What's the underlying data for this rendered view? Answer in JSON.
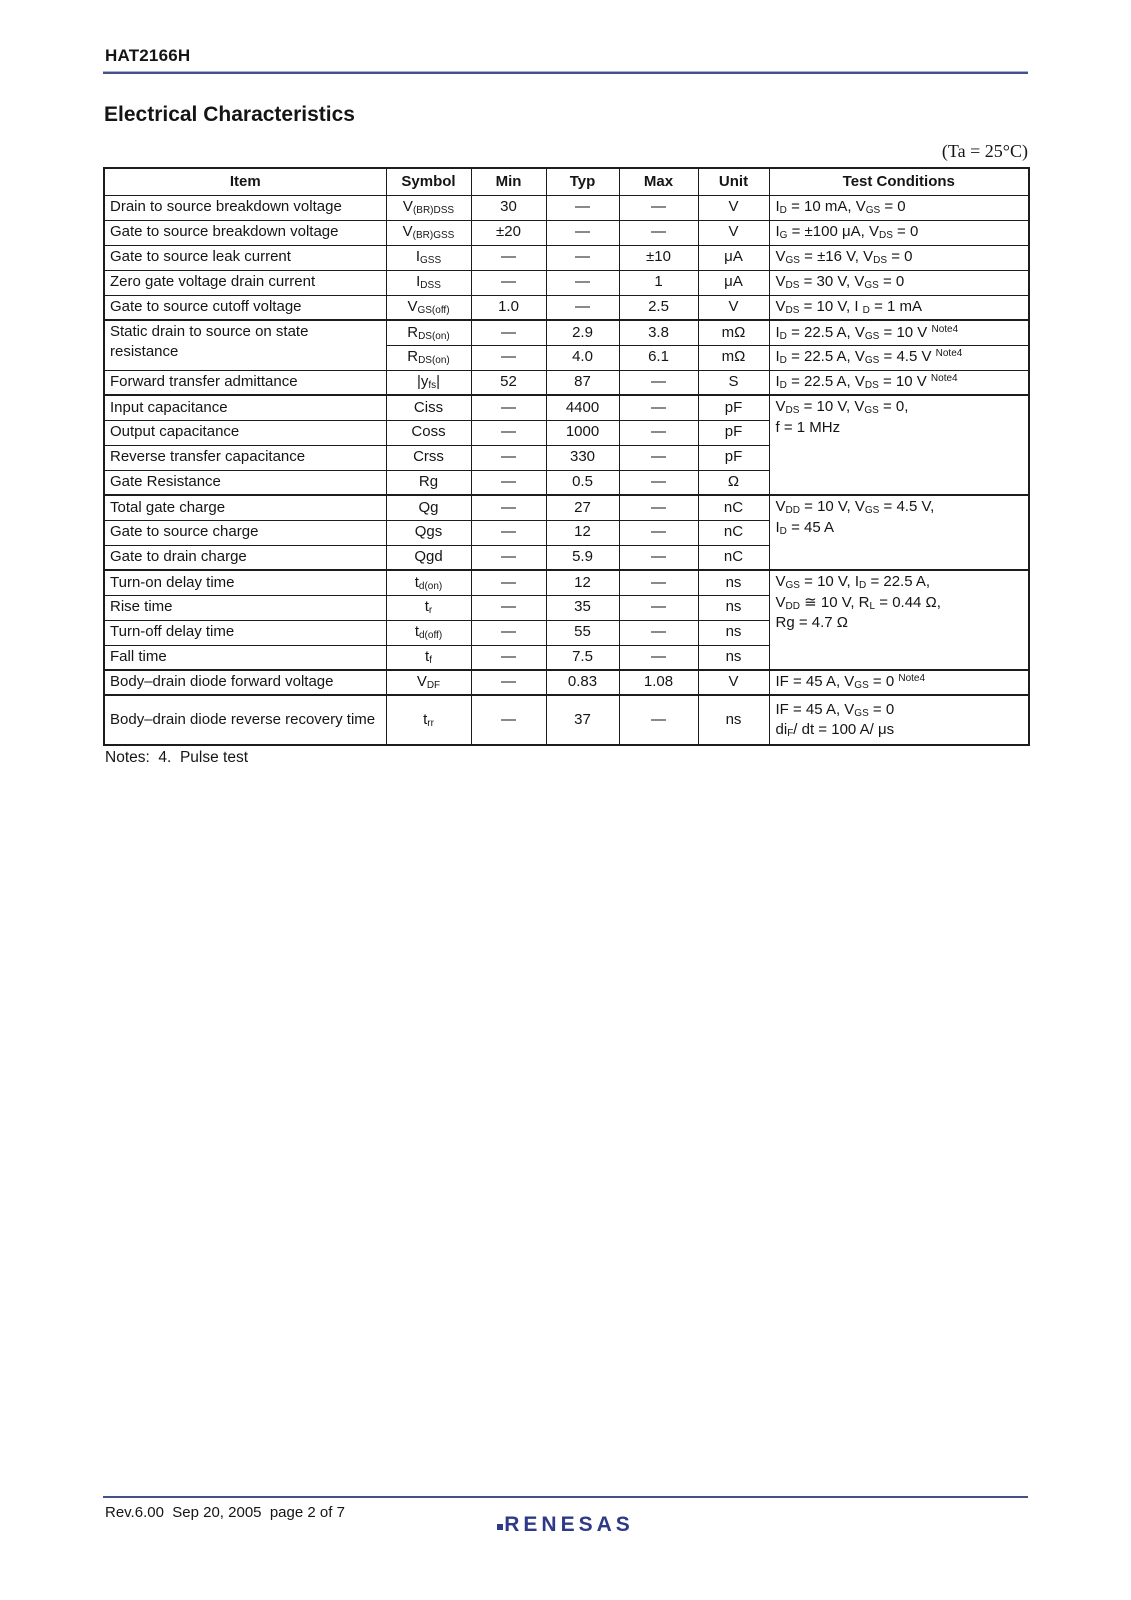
{
  "header": {
    "part_number": "HAT2166H"
  },
  "main": {
    "title": "Electrical Characteristics",
    "condition_note": "(Ta = 25°C)",
    "notes": "Notes:  4.  Pulse test"
  },
  "table": {
    "columns": [
      "Item",
      "Symbol",
      "Min",
      "Typ",
      "Max",
      "Unit",
      "Test Conditions"
    ],
    "rows": [
      {
        "item": "Drain to source breakdown voltage",
        "symbol": [
          {
            "t": "V"
          },
          {
            "t": "(BR)DSS",
            "s": "sub"
          }
        ],
        "min": "30",
        "typ": "—",
        "max": "—",
        "unit": "V",
        "cond": [
          [
            {
              "t": "I"
            },
            {
              "t": "D",
              "s": "sub"
            },
            {
              "t": " = 10 mA, V"
            },
            {
              "t": "GS",
              "s": "sub"
            },
            {
              "t": " = 0"
            }
          ]
        ]
      },
      {
        "item": "Gate to source breakdown voltage",
        "symbol": [
          {
            "t": "V"
          },
          {
            "t": "(BR)GSS",
            "s": "sub"
          }
        ],
        "min": "±20",
        "typ": "—",
        "max": "—",
        "unit": "V",
        "cond": [
          [
            {
              "t": "I"
            },
            {
              "t": "G",
              "s": "sub"
            },
            {
              "t": " = ±100 μA, V"
            },
            {
              "t": "DS",
              "s": "sub"
            },
            {
              "t": " = 0"
            }
          ]
        ]
      },
      {
        "item": "Gate to source leak current",
        "symbol": [
          {
            "t": "I"
          },
          {
            "t": "GSS",
            "s": "sub"
          }
        ],
        "min": "—",
        "typ": "—",
        "max": "±10",
        "unit": "μA",
        "cond": [
          [
            {
              "t": "V"
            },
            {
              "t": "GS",
              "s": "sub"
            },
            {
              "t": " = ±16 V, V"
            },
            {
              "t": "DS",
              "s": "sub"
            },
            {
              "t": " = 0"
            }
          ]
        ]
      },
      {
        "item": "Zero gate voltage drain current",
        "symbol": [
          {
            "t": "I"
          },
          {
            "t": "DSS",
            "s": "sub"
          }
        ],
        "min": "—",
        "typ": "—",
        "max": "1",
        "unit": "μA",
        "cond": [
          [
            {
              "t": "V"
            },
            {
              "t": "DS",
              "s": "sub"
            },
            {
              "t": " = 30 V, V"
            },
            {
              "t": "GS",
              "s": "sub"
            },
            {
              "t": " = 0"
            }
          ]
        ]
      },
      {
        "item": "Gate to source cutoff voltage",
        "symbol": [
          {
            "t": "V"
          },
          {
            "t": "GS(off)",
            "s": "sub"
          }
        ],
        "min": "1.0",
        "typ": "—",
        "max": "2.5",
        "unit": "V",
        "cond": [
          [
            {
              "t": "V"
            },
            {
              "t": "DS",
              "s": "sub"
            },
            {
              "t": " = 10 V,  I "
            },
            {
              "t": "D",
              "s": "sub"
            },
            {
              "t": " = 1 mA"
            }
          ]
        ]
      },
      {
        "item": "Static drain to source on state resistance",
        "item_rowspan": 2,
        "group": true,
        "symbol": [
          {
            "t": "R"
          },
          {
            "t": "DS(on)",
            "s": "sub"
          }
        ],
        "min": "—",
        "typ": "2.9",
        "max": "3.8",
        "unit": "mΩ",
        "cond": [
          [
            {
              "t": "I"
            },
            {
              "t": "D",
              "s": "sub"
            },
            {
              "t": " = 22.5 A, V"
            },
            {
              "t": "GS",
              "s": "sub"
            },
            {
              "t": " = 10 V "
            },
            {
              "t": "Note4",
              "s": "sup"
            }
          ]
        ]
      },
      {
        "item_skip": true,
        "symbol": [
          {
            "t": "R"
          },
          {
            "t": "DS(on)",
            "s": "sub"
          }
        ],
        "min": "—",
        "typ": "4.0",
        "max": "6.1",
        "unit": "mΩ",
        "cond": [
          [
            {
              "t": "I"
            },
            {
              "t": "D",
              "s": "sub"
            },
            {
              "t": " = 22.5 A, V"
            },
            {
              "t": "GS",
              "s": "sub"
            },
            {
              "t": " = 4.5 V "
            },
            {
              "t": "Note4",
              "s": "sup"
            }
          ]
        ]
      },
      {
        "item": "Forward transfer admittance",
        "symbol": [
          {
            "t": "|y"
          },
          {
            "t": "fs",
            "s": "sub"
          },
          {
            "t": "|"
          }
        ],
        "min": "52",
        "typ": "87",
        "max": "—",
        "unit": "S",
        "cond": [
          [
            {
              "t": "I"
            },
            {
              "t": "D",
              "s": "sub"
            },
            {
              "t": " = 22.5 A, V"
            },
            {
              "t": "DS",
              "s": "sub"
            },
            {
              "t": " = 10 V "
            },
            {
              "t": "Note4",
              "s": "sup"
            }
          ]
        ]
      },
      {
        "item": "Input capacitance",
        "group": true,
        "symbol": [
          {
            "t": "Ciss"
          }
        ],
        "min": "—",
        "typ": "4400",
        "max": "—",
        "unit": "pF",
        "cond_rowspan": 4,
        "cond": [
          [
            {
              "t": "V"
            },
            {
              "t": "DS",
              "s": "sub"
            },
            {
              "t": " = 10 V, V"
            },
            {
              "t": "GS",
              "s": "sub"
            },
            {
              "t": " = 0,"
            }
          ],
          [
            {
              "t": "f = 1 MHz"
            }
          ]
        ]
      },
      {
        "item": "Output capacitance",
        "symbol": [
          {
            "t": "Coss"
          }
        ],
        "min": "—",
        "typ": "1000",
        "max": "—",
        "unit": "pF",
        "cond_skip": true
      },
      {
        "item": "Reverse transfer capacitance",
        "symbol": [
          {
            "t": "Crss"
          }
        ],
        "min": "—",
        "typ": "330",
        "max": "—",
        "unit": "pF",
        "cond_skip": true
      },
      {
        "item": "Gate Resistance",
        "symbol": [
          {
            "t": "Rg"
          }
        ],
        "min": "—",
        "typ": "0.5",
        "max": "—",
        "unit": "Ω",
        "cond_skip": true
      },
      {
        "item": "Total gate charge",
        "group": true,
        "symbol": [
          {
            "t": "Qg"
          }
        ],
        "min": "—",
        "typ": "27",
        "max": "—",
        "unit": "nC",
        "cond_rowspan": 3,
        "cond": [
          [
            {
              "t": "V"
            },
            {
              "t": "DD",
              "s": "sub"
            },
            {
              "t": " = 10 V, V"
            },
            {
              "t": "GS",
              "s": "sub"
            },
            {
              "t": " = 4.5 V,"
            }
          ],
          [
            {
              "t": "I"
            },
            {
              "t": "D",
              "s": "sub"
            },
            {
              "t": " = 45 A"
            }
          ]
        ]
      },
      {
        "item": "Gate to source charge",
        "symbol": [
          {
            "t": "Qgs"
          }
        ],
        "min": "—",
        "typ": "12",
        "max": "—",
        "unit": "nC",
        "cond_skip": true
      },
      {
        "item": "Gate to drain charge",
        "symbol": [
          {
            "t": "Qgd"
          }
        ],
        "min": "—",
        "typ": "5.9",
        "max": "—",
        "unit": "nC",
        "cond_skip": true
      },
      {
        "item": "Turn-on delay time",
        "group": true,
        "symbol": [
          {
            "t": "t"
          },
          {
            "t": "d(on)",
            "s": "sub"
          }
        ],
        "min": "—",
        "typ": "12",
        "max": "—",
        "unit": "ns",
        "cond_rowspan": 4,
        "cond": [
          [
            {
              "t": "V"
            },
            {
              "t": "GS",
              "s": "sub"
            },
            {
              "t": " = 10 V, I"
            },
            {
              "t": "D",
              "s": "sub"
            },
            {
              "t": " = 22.5 A,"
            }
          ],
          [
            {
              "t": "V"
            },
            {
              "t": "DD",
              "s": "sub"
            },
            {
              "t": " ≅ 10 V, R"
            },
            {
              "t": "L",
              "s": "sub"
            },
            {
              "t": " = 0.44 Ω,"
            }
          ],
          [
            {
              "t": "Rg = 4.7 Ω"
            }
          ]
        ]
      },
      {
        "item": "Rise time",
        "symbol": [
          {
            "t": "t"
          },
          {
            "t": "r",
            "s": "sub"
          }
        ],
        "min": "—",
        "typ": "35",
        "max": "—",
        "unit": "ns",
        "cond_skip": true
      },
      {
        "item": "Turn-off delay time",
        "symbol": [
          {
            "t": "t"
          },
          {
            "t": "d(off)",
            "s": "sub"
          }
        ],
        "min": "—",
        "typ": "55",
        "max": "—",
        "unit": "ns",
        "cond_skip": true
      },
      {
        "item": "Fall time",
        "symbol": [
          {
            "t": "t"
          },
          {
            "t": "f",
            "s": "sub"
          }
        ],
        "min": "—",
        "typ": "7.5",
        "max": "—",
        "unit": "ns",
        "cond_skip": true
      },
      {
        "item": "Body–drain diode forward voltage",
        "group": true,
        "symbol": [
          {
            "t": "V"
          },
          {
            "t": "DF",
            "s": "sub"
          }
        ],
        "min": "—",
        "typ": "0.83",
        "max": "1.08",
        "unit": "V",
        "cond": [
          [
            {
              "t": "IF = 45 A, V"
            },
            {
              "t": "GS",
              "s": "sub"
            },
            {
              "t": " = 0 "
            },
            {
              "t": "Note4",
              "s": "sup"
            }
          ]
        ]
      },
      {
        "item": "Body–drain diode reverse recovery time",
        "group": true,
        "tall": true,
        "symbol": [
          {
            "t": "t"
          },
          {
            "t": "rr",
            "s": "sub"
          }
        ],
        "min": "—",
        "typ": "37",
        "max": "—",
        "unit": "ns",
        "cond": [
          [
            {
              "t": "IF = 45 A, V"
            },
            {
              "t": "GS",
              "s": "sub"
            },
            {
              "t": " = 0"
            }
          ],
          [
            {
              "t": "di"
            },
            {
              "t": "F",
              "s": "sub"
            },
            {
              "t": "/ dt  = 100 A/ μs"
            }
          ]
        ]
      }
    ]
  },
  "footer": {
    "revision": "Rev.6.00  Sep 20, 2005  page 2 of 7",
    "logo_text": "RENESAS"
  },
  "colors": {
    "rule_navy": "#45528a",
    "logo_navy": "#2e3a87",
    "border_black": "#1c1c1c"
  }
}
